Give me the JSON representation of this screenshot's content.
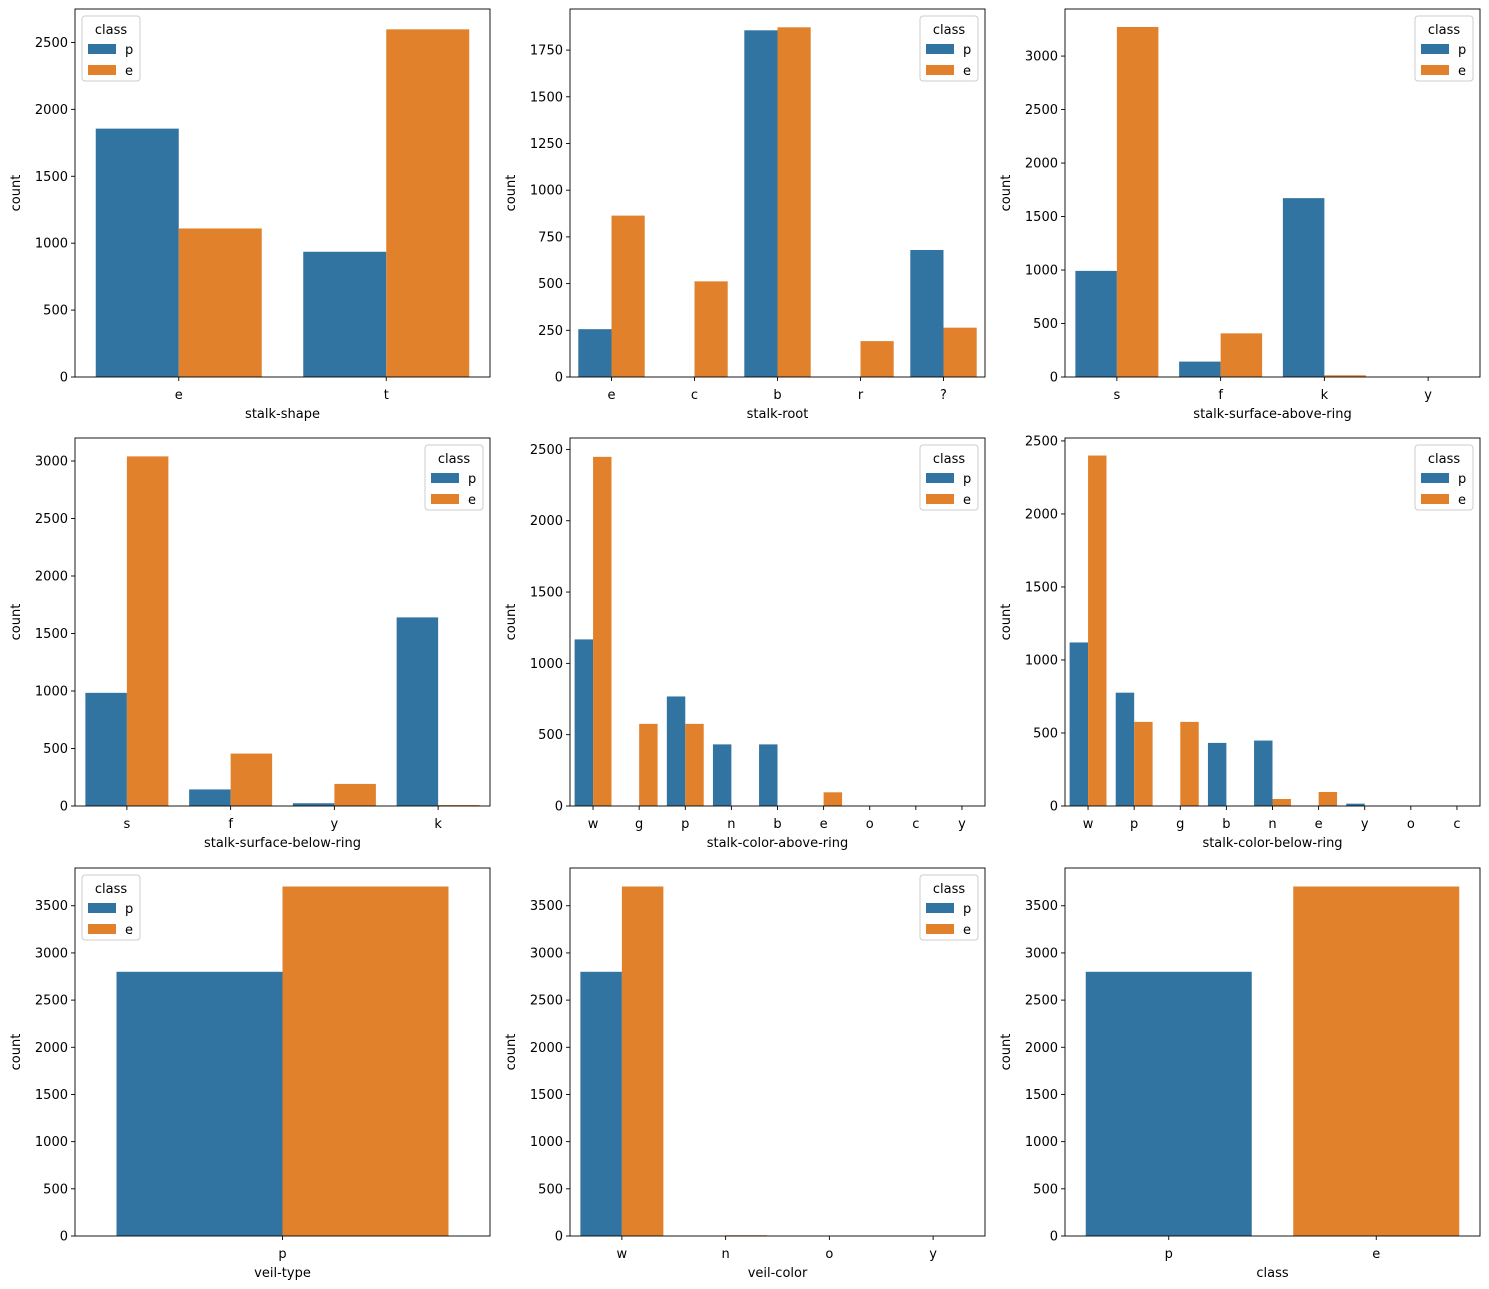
{
  "colors": {
    "p": "#3274a1",
    "e": "#e1812c"
  },
  "chart_data": [
    {
      "type": "bar",
      "xlabel": "stalk-shape",
      "ylabel": "count",
      "categories": [
        "e",
        "t"
      ],
      "ylim": [
        0,
        2750
      ],
      "yticks": [
        0,
        500,
        1000,
        1500,
        2000,
        2500
      ],
      "legend": {
        "title": "class",
        "loc": "top-left"
      },
      "series": [
        {
          "name": "p",
          "values": [
            1856,
            936
          ]
        },
        {
          "name": "e",
          "values": [
            1110,
            2598
          ]
        }
      ]
    },
    {
      "type": "bar",
      "xlabel": "stalk-root",
      "ylabel": "count",
      "categories": [
        "e",
        "c",
        "b",
        "r",
        "?"
      ],
      "ylim": [
        0,
        1970
      ],
      "yticks": [
        0,
        250,
        500,
        750,
        1000,
        1250,
        1500,
        1750
      ],
      "legend": {
        "title": "class",
        "loc": "top-right"
      },
      "series": [
        {
          "name": "p",
          "values": [
            256,
            0,
            1856,
            0,
            680
          ]
        },
        {
          "name": "e",
          "values": [
            864,
            512,
            1872,
            192,
            264
          ]
        }
      ]
    },
    {
      "type": "bar",
      "xlabel": "stalk-surface-above-ring",
      "ylabel": "count",
      "categories": [
        "s",
        "f",
        "k",
        "y"
      ],
      "ylim": [
        0,
        3440
      ],
      "yticks": [
        0,
        500,
        1000,
        1500,
        2000,
        2500,
        3000
      ],
      "legend": {
        "title": "class",
        "loc": "top-right"
      },
      "series": [
        {
          "name": "p",
          "values": [
            992,
            144,
            1672,
            0
          ]
        },
        {
          "name": "e",
          "values": [
            3272,
            408,
            16,
            0
          ]
        }
      ]
    },
    {
      "type": "bar",
      "xlabel": "stalk-surface-below-ring",
      "ylabel": "count",
      "categories": [
        "s",
        "f",
        "y",
        "k"
      ],
      "ylim": [
        0,
        3200
      ],
      "yticks": [
        0,
        500,
        1000,
        1500,
        2000,
        2500,
        3000
      ],
      "legend": {
        "title": "class",
        "loc": "top-right"
      },
      "series": [
        {
          "name": "p",
          "values": [
            984,
            144,
            24,
            1640
          ]
        },
        {
          "name": "e",
          "values": [
            3040,
            456,
            192,
            8
          ]
        }
      ]
    },
    {
      "type": "bar",
      "xlabel": "stalk-color-above-ring",
      "ylabel": "count",
      "categories": [
        "w",
        "g",
        "p",
        "n",
        "b",
        "e",
        "o",
        "c",
        "y"
      ],
      "ylim": [
        0,
        2580
      ],
      "yticks": [
        0,
        500,
        1000,
        1500,
        2000,
        2500
      ],
      "legend": {
        "title": "class",
        "loc": "top-right"
      },
      "series": [
        {
          "name": "p",
          "values": [
            1168,
            0,
            768,
            432,
            432,
            0,
            0,
            0,
            0
          ]
        },
        {
          "name": "e",
          "values": [
            2448,
            576,
            576,
            0,
            0,
            96,
            0,
            0,
            0
          ]
        }
      ]
    },
    {
      "type": "bar",
      "xlabel": "stalk-color-below-ring",
      "ylabel": "count",
      "categories": [
        "w",
        "p",
        "g",
        "b",
        "n",
        "e",
        "y",
        "o",
        "c"
      ],
      "ylim": [
        0,
        2520
      ],
      "yticks": [
        0,
        500,
        1000,
        1500,
        2000,
        2500
      ],
      "legend": {
        "title": "class",
        "loc": "top-right"
      },
      "series": [
        {
          "name": "p",
          "values": [
            1120,
            776,
            0,
            432,
            448,
            0,
            16,
            0,
            0
          ]
        },
        {
          "name": "e",
          "values": [
            2400,
            576,
            576,
            0,
            48,
            96,
            0,
            0,
            0
          ]
        }
      ]
    },
    {
      "type": "bar",
      "xlabel": "veil-type",
      "ylabel": "count",
      "categories": [
        "p"
      ],
      "ylim": [
        0,
        3900
      ],
      "yticks": [
        0,
        500,
        1000,
        1500,
        2000,
        2500,
        3000,
        3500
      ],
      "legend": {
        "title": "class",
        "loc": "top-left"
      },
      "series": [
        {
          "name": "p",
          "values": [
            2800
          ]
        },
        {
          "name": "e",
          "values": [
            3704
          ]
        }
      ]
    },
    {
      "type": "bar",
      "xlabel": "veil-color",
      "ylabel": "count",
      "categories": [
        "w",
        "n",
        "o",
        "y"
      ],
      "ylim": [
        0,
        3900
      ],
      "yticks": [
        0,
        500,
        1000,
        1500,
        2000,
        2500,
        3000,
        3500
      ],
      "legend": {
        "title": "class",
        "loc": "top-right"
      },
      "series": [
        {
          "name": "p",
          "values": [
            2800,
            0,
            0,
            0
          ]
        },
        {
          "name": "e",
          "values": [
            3704,
            8,
            0,
            0
          ]
        }
      ]
    },
    {
      "type": "bar",
      "xlabel": "class",
      "ylabel": "count",
      "categories": [
        "p",
        "e"
      ],
      "ylim": [
        0,
        3900
      ],
      "yticks": [
        0,
        500,
        1000,
        1500,
        2000,
        2500,
        3000,
        3500
      ],
      "legend": null,
      "bars": [
        {
          "category": "p",
          "value": 2800,
          "color": "p"
        },
        {
          "category": "e",
          "value": 3704,
          "color": "e"
        }
      ]
    }
  ]
}
